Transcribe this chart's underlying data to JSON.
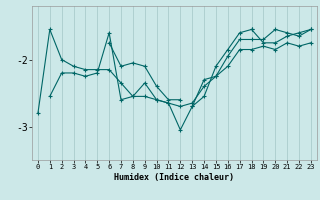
{
  "xlabel": "Humidex (Indice chaleur)",
  "bg_color": "#cce8e8",
  "grid_color": "#aacccc",
  "line_color": "#006666",
  "xlim": [
    -0.5,
    23.5
  ],
  "ylim": [
    -3.5,
    -1.2
  ],
  "yticks": [
    -3,
    -2
  ],
  "xticks": [
    0,
    1,
    2,
    3,
    4,
    5,
    6,
    7,
    8,
    9,
    10,
    11,
    12,
    13,
    14,
    15,
    16,
    17,
    18,
    19,
    20,
    21,
    22,
    23
  ],
  "series": [
    [
      null,
      -2.55,
      -2.2,
      -2.2,
      -2.25,
      -2.2,
      -1.6,
      -2.6,
      -2.55,
      -2.55,
      -2.6,
      -2.65,
      -2.7,
      -2.65,
      -2.4,
      -2.25,
      -2.1,
      -1.85,
      -1.85,
      -1.8,
      -1.85,
      -1.75,
      -1.8,
      -1.75
    ],
    [
      -2.8,
      -1.55,
      -2.0,
      -2.1,
      -2.15,
      -2.15,
      -2.15,
      -2.35,
      -2.55,
      -2.35,
      -2.6,
      -2.65,
      -3.05,
      -2.7,
      -2.55,
      -2.1,
      -1.85,
      -1.6,
      -1.55,
      null,
      null,
      null,
      null,
      null
    ],
    [
      null,
      null,
      null,
      null,
      null,
      null,
      null,
      null,
      null,
      null,
      null,
      null,
      null,
      null,
      null,
      null,
      null,
      null,
      -1.55,
      -1.75,
      -1.75,
      -1.65,
      -1.6,
      -1.55
    ],
    [
      null,
      null,
      null,
      null,
      null,
      null,
      -1.75,
      -2.1,
      -2.05,
      -2.1,
      -2.4,
      -2.6,
      -2.6,
      null,
      null,
      null,
      null,
      null,
      null,
      null,
      null,
      null,
      null,
      null
    ],
    [
      null,
      null,
      null,
      null,
      null,
      null,
      null,
      null,
      null,
      null,
      null,
      null,
      null,
      -2.7,
      -2.3,
      -2.25,
      -1.95,
      -1.7,
      -1.7,
      -1.7,
      -1.55,
      -1.6,
      -1.65,
      -1.55
    ]
  ]
}
